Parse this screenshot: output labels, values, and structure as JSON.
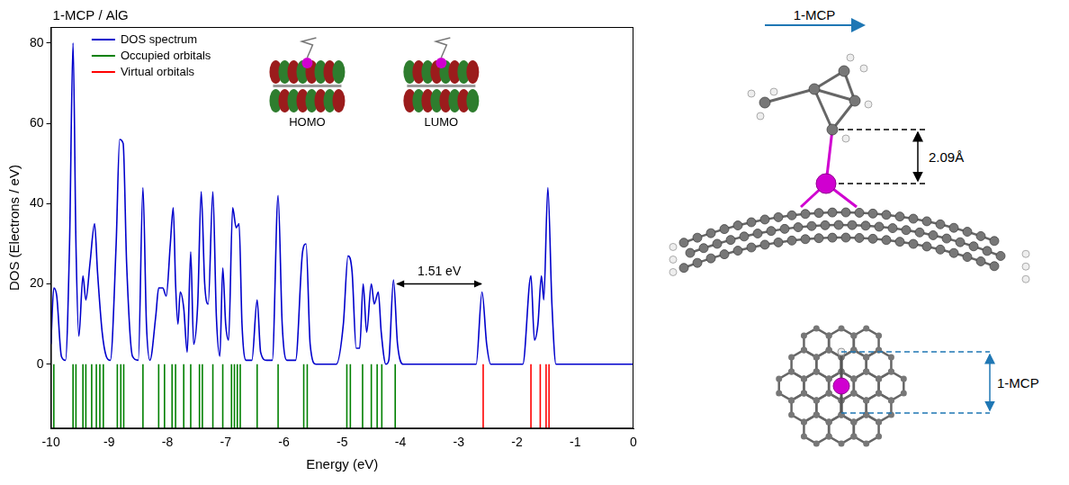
{
  "chart_data": {
    "type": "line",
    "title": "1-MCP / AlG",
    "x_label": "Energy (eV)",
    "y_label": "DOS (Electrons / eV)",
    "xlim": [
      -10,
      0
    ],
    "xticks": [
      -10,
      -9,
      -8,
      -7,
      -6,
      -5,
      -4,
      -3,
      -2,
      -1,
      0
    ],
    "ylim": [
      -16,
      84
    ],
    "yticks": [
      0,
      20,
      40,
      60,
      80
    ],
    "grid": false,
    "legend": "upper left",
    "gap_label": "1.51 eV",
    "orbital_labels": [
      "HOMO",
      "LUMO"
    ],
    "series": [
      {
        "name": "DOS spectrum",
        "color": "#0000cc",
        "type": "line",
        "x": [
          -10.0,
          -9.95,
          -9.9,
          -9.82,
          -9.75,
          -9.68,
          -9.62,
          -9.57,
          -9.52,
          -9.45,
          -9.4,
          -9.33,
          -9.25,
          -9.2,
          -9.12,
          -9.05,
          -8.98,
          -8.88,
          -8.82,
          -8.76,
          -8.7,
          -8.6,
          -8.5,
          -8.42,
          -8.36,
          -8.3,
          -8.2,
          -8.15,
          -8.08,
          -8.02,
          -7.95,
          -7.9,
          -7.86,
          -7.82,
          -7.78,
          -7.72,
          -7.66,
          -7.6,
          -7.55,
          -7.48,
          -7.42,
          -7.36,
          -7.3,
          -7.22,
          -7.16,
          -7.1,
          -7.05,
          -7.0,
          -6.95,
          -6.88,
          -6.82,
          -6.77,
          -6.72,
          -6.65,
          -6.55,
          -6.46,
          -6.4,
          -6.3,
          -6.2,
          -6.1,
          -6.03,
          -5.95,
          -5.8,
          -5.68,
          -5.62,
          -5.55,
          -5.45,
          -5.1,
          -4.98,
          -4.9,
          -4.83,
          -4.76,
          -4.7,
          -4.64,
          -4.58,
          -4.5,
          -4.45,
          -4.38,
          -4.33,
          -4.25,
          -4.2,
          -4.12,
          -4.05,
          -3.95,
          -2.7,
          -2.6,
          -2.52,
          -2.45,
          -1.9,
          -1.76,
          -1.7,
          -1.64,
          -1.58,
          -1.54,
          -1.47,
          -1.4,
          -1.33,
          0
        ],
        "values": [
          5,
          19,
          17,
          2,
          1,
          30,
          80,
          30,
          7,
          22,
          16,
          25,
          35,
          23,
          8,
          2,
          1,
          30,
          56,
          55,
          25,
          2,
          1,
          44,
          10,
          1,
          12,
          19,
          19,
          17,
          30,
          39,
          20,
          10,
          18,
          14,
          3,
          28,
          5,
          15,
          43,
          20,
          15,
          43,
          12,
          2,
          24,
          10,
          6,
          39,
          34,
          35,
          10,
          1,
          1,
          16,
          3,
          1,
          1,
          42,
          10,
          1,
          1,
          28,
          30,
          5,
          0,
          0,
          10,
          27,
          23,
          4,
          4,
          20,
          8,
          20,
          15,
          18,
          8,
          0,
          1,
          21,
          5,
          0,
          0,
          18,
          5,
          0,
          0,
          22,
          6,
          10,
          22,
          16,
          44,
          15,
          0,
          0
        ]
      },
      {
        "name": "Occupied orbitals",
        "color": "#008000",
        "type": "stick",
        "x": [
          -9.95,
          -9.62,
          -9.57,
          -9.45,
          -9.4,
          -9.3,
          -9.22,
          -9.16,
          -9.1,
          -8.86,
          -8.8,
          -8.75,
          -8.42,
          -8.15,
          -8.05,
          -7.92,
          -7.86,
          -7.72,
          -7.6,
          -7.45,
          -7.4,
          -7.22,
          -7.05,
          -6.9,
          -6.85,
          -6.8,
          -6.75,
          -6.46,
          -6.1,
          -5.66,
          -5.6,
          -4.92,
          -4.86,
          -4.65,
          -4.5,
          -4.4,
          -4.32,
          -4.09
        ]
      },
      {
        "name": "Virtual orbitals",
        "color": "#ff0000",
        "type": "stick",
        "x": [
          -2.58,
          -1.76,
          -1.6,
          -1.5,
          -1.45
        ]
      }
    ]
  },
  "structure_panel": {
    "side_view": {
      "molecule_label": "1-MCP",
      "distance_label": "2.09Å"
    },
    "top_view": {
      "molecule_label": "1-MCP"
    }
  }
}
